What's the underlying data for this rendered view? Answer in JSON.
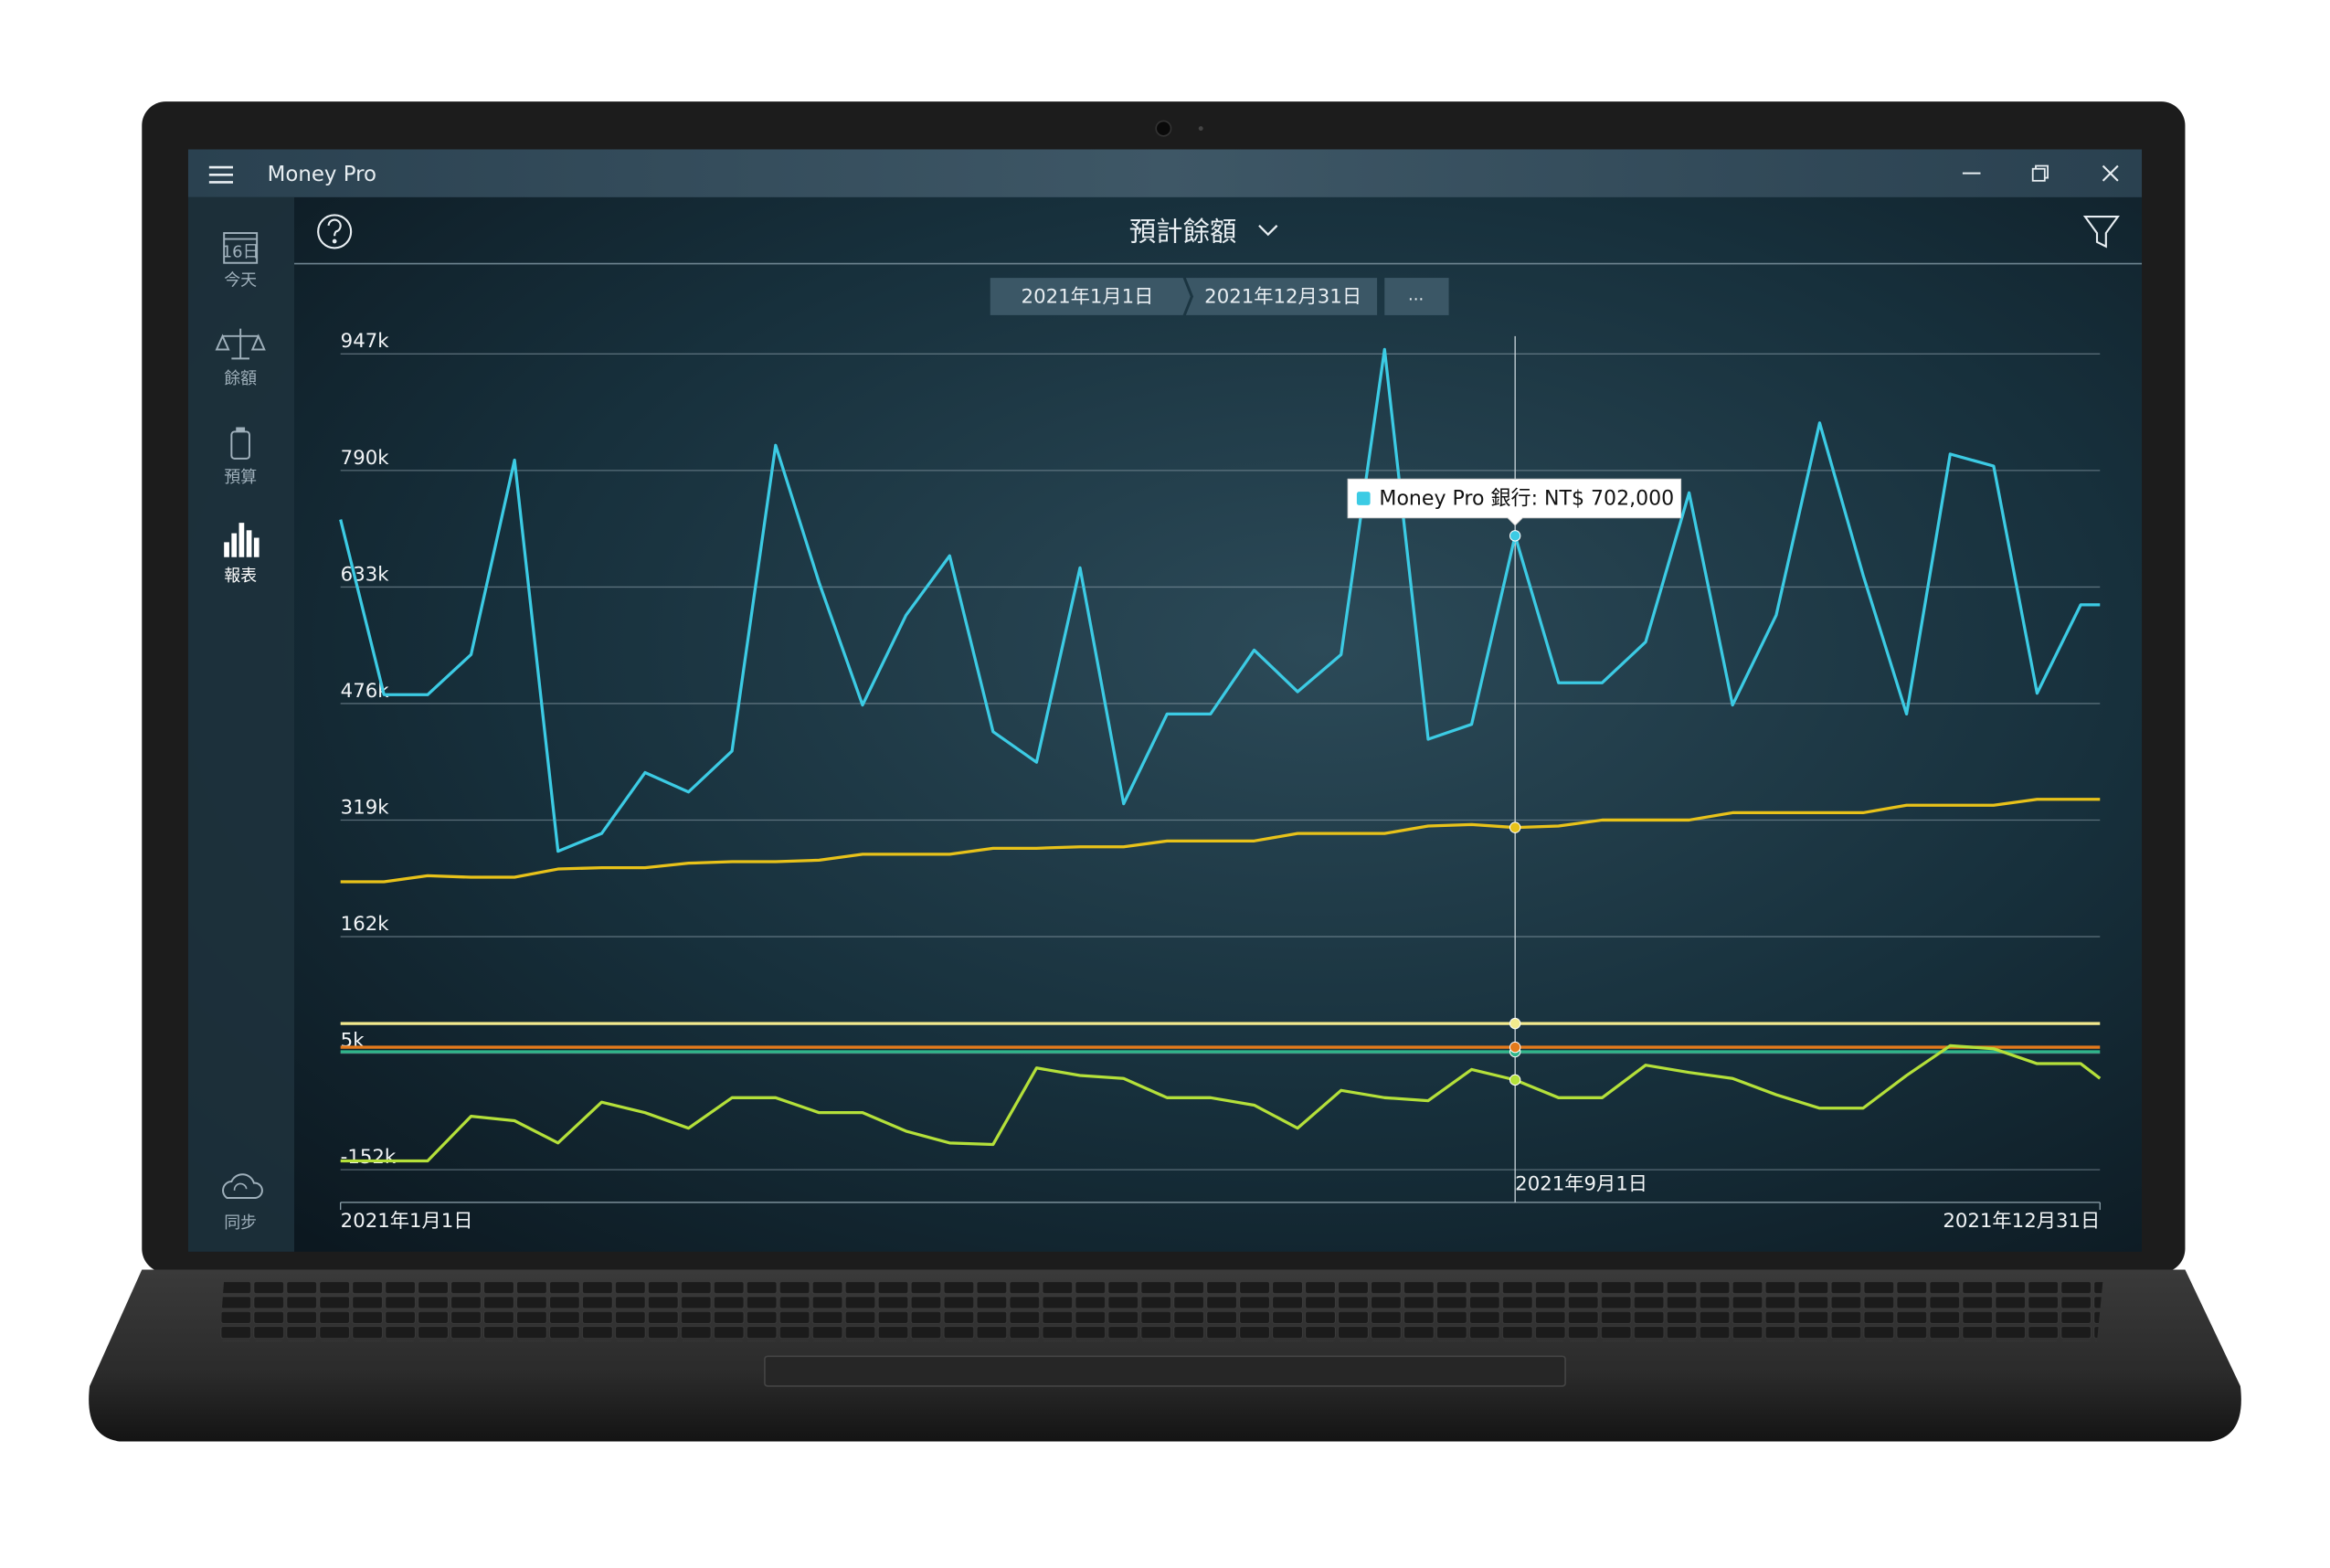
{
  "window": {
    "title": "Money Pro"
  },
  "sidebar": {
    "calendar_icon": "16日",
    "items": [
      "今天",
      "餘額",
      "預算",
      "報表"
    ],
    "sync": "同步"
  },
  "header": {
    "title": "預計餘額"
  },
  "date_range": {
    "start": "2021年1月1日",
    "end": "2021年12月31日",
    "more": "..."
  },
  "chart_data": {
    "type": "line",
    "x": [
      "2021-01-01",
      "2021-01-10",
      "2021-01-19",
      "2021-01-28",
      "2021-02-06",
      "2021-02-15",
      "2021-02-24",
      "2021-03-05",
      "2021-03-14",
      "2021-03-23",
      "2021-04-01",
      "2021-04-10",
      "2021-04-19",
      "2021-04-28",
      "2021-05-07",
      "2021-05-16",
      "2021-05-25",
      "2021-06-03",
      "2021-06-12",
      "2021-06-21",
      "2021-06-30",
      "2021-07-09",
      "2021-07-18",
      "2021-07-27",
      "2021-08-05",
      "2021-08-14",
      "2021-08-23",
      "2021-09-01",
      "2021-09-10",
      "2021-09-19",
      "2021-09-28",
      "2021-10-07",
      "2021-10-16",
      "2021-10-25",
      "2021-11-03",
      "2021-11-12",
      "2021-11-21",
      "2021-11-30",
      "2021-12-09",
      "2021-12-18",
      "2021-12-27",
      "2021-12-31"
    ],
    "series": [
      {
        "color": "#f3ea8e",
        "values": [
          45000,
          45000,
          45000,
          45000,
          45000,
          45000,
          45000,
          45000,
          45000,
          45000,
          45000,
          45000,
          45000,
          45000,
          45000,
          45000,
          45000,
          45000,
          45000,
          45000,
          45000,
          45000,
          45000,
          45000,
          45000,
          45000,
          45000,
          45000,
          45000,
          45000,
          45000,
          45000,
          45000,
          45000,
          45000,
          45000,
          45000,
          45000,
          45000,
          45000,
          45000,
          45000
        ]
      },
      {
        "color": "#2fb58a",
        "values": [
          7000,
          7000,
          7000,
          7000,
          7000,
          7000,
          7000,
          7000,
          7000,
          7000,
          7000,
          7000,
          7000,
          7000,
          7000,
          7000,
          7000,
          7000,
          7000,
          7000,
          7000,
          7000,
          7000,
          7000,
          7000,
          7000,
          7000,
          7000,
          7000,
          7000,
          7000,
          7000,
          7000,
          7000,
          7000,
          7000,
          7000,
          7000,
          7000,
          7000,
          7000,
          7000
        ]
      },
      {
        "color": "#e47a1c",
        "values": [
          13000,
          13000,
          13000,
          13000,
          13000,
          13000,
          13000,
          13000,
          13000,
          13000,
          13000,
          13000,
          13000,
          13000,
          13000,
          13000,
          13000,
          13000,
          13000,
          13000,
          13000,
          13000,
          13000,
          13000,
          13000,
          13000,
          13000,
          13000,
          13000,
          13000,
          13000,
          13000,
          13000,
          13000,
          13000,
          13000,
          13000,
          13000,
          13000,
          13000,
          13000,
          13000
        ]
      },
      {
        "color": "#b4e03a",
        "values": [
          -140000,
          -140000,
          -140000,
          -80000,
          -86000,
          -116000,
          -61000,
          -75000,
          -96000,
          -55000,
          -55000,
          -75000,
          -75000,
          -100000,
          -116000,
          -118000,
          -15000,
          -25000,
          -29000,
          -55000,
          -55000,
          -65000,
          -96000,
          -45000,
          -55000,
          -59000,
          -17000,
          -31000,
          -55000,
          -55000,
          -11000,
          -21000,
          -29000,
          -51000,
          -69000,
          -69000,
          -25000,
          15000,
          11000,
          -9000,
          -9000,
          -29000
        ]
      },
      {
        "color": "#e8c21a",
        "values": [
          236000,
          236000,
          244000,
          242000,
          242000,
          253000,
          255000,
          255000,
          261000,
          263000,
          263000,
          265000,
          273000,
          273000,
          273000,
          281000,
          281000,
          283000,
          283000,
          291000,
          291000,
          291000,
          301000,
          301000,
          301000,
          311000,
          313000,
          309000,
          311000,
          319000,
          319000,
          319000,
          329000,
          329000,
          329000,
          329000,
          339000,
          339000,
          339000,
          347000,
          347000,
          347000
        ]
      },
      {
        "color": "#3ccbe4",
        "values": [
          724000,
          488000,
          488000,
          542000,
          804000,
          277000,
          301000,
          383000,
          357000,
          412000,
          824000,
          639000,
          474000,
          595000,
          675000,
          438000,
          397000,
          659000,
          341000,
          462000,
          462000,
          548000,
          492000,
          542000,
          953000,
          428000,
          448000,
          702000,
          504000,
          504000,
          559000,
          760000,
          474000,
          595000,
          854000,
          649000,
          462000,
          812000,
          796000,
          490000,
          609000,
          609000
        ]
      }
    ],
    "xlim": [
      "2021-01-01",
      "2021-12-31"
    ],
    "xticks": [
      {
        "value": "2021-01-01",
        "label": "2021年1月1日"
      },
      {
        "value": "2021-09-01",
        "label": "2021年9月1日"
      },
      {
        "value": "2021-12-31",
        "label": "2021年12月31日"
      }
    ],
    "ylim": [
      -196000,
      971000
    ],
    "yticks": [
      {
        "value": 947000,
        "label": "947k"
      },
      {
        "value": 790000,
        "label": "790k"
      },
      {
        "value": 633000,
        "label": "633k"
      },
      {
        "value": 476000,
        "label": "476k"
      },
      {
        "value": 319000,
        "label": "319k"
      },
      {
        "value": 162000,
        "label": "162k"
      },
      {
        "value": 5000,
        "label": "5k"
      },
      {
        "value": -152000,
        "label": "-152k"
      }
    ],
    "grid": true,
    "tooltip": {
      "text": "Money Pro 銀行: NT$ 702,000"
    }
  }
}
